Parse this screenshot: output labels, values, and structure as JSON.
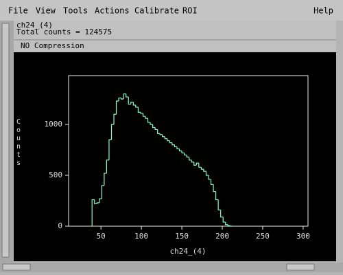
{
  "menu": [
    "File",
    "View",
    "Tools",
    "Actions",
    "Calibrate",
    "ROI"
  ],
  "help": "Help",
  "info": {
    "name": "ch24_(4)",
    "total": "Total counts = 124575",
    "compression": "NO Compression"
  },
  "chart_data": {
    "type": "histogram",
    "x_label": "ch24_(4)",
    "y_label": "Counts",
    "color": "#7fffd4",
    "bins": [
      39,
      42,
      45,
      48,
      51,
      54,
      57,
      60,
      63,
      66,
      69,
      72,
      75,
      78,
      81,
      84,
      87,
      90,
      93,
      96,
      99,
      102,
      105,
      108,
      111,
      114,
      117,
      120,
      123,
      126,
      129,
      132,
      135,
      138,
      141,
      144,
      147,
      150,
      153,
      156,
      159,
      162,
      165,
      168,
      171,
      174,
      177,
      180,
      183,
      186,
      189,
      192,
      195,
      198,
      201,
      204,
      207,
      210,
      213
    ],
    "values": [
      260,
      220,
      230,
      270,
      400,
      520,
      650,
      850,
      1000,
      1100,
      1230,
      1260,
      1250,
      1300,
      1270,
      1200,
      1220,
      1190,
      1170,
      1120,
      1110,
      1080,
      1060,
      1020,
      1000,
      970,
      950,
      910,
      900,
      880,
      860,
      840,
      820,
      800,
      780,
      760,
      740,
      720,
      700,
      680,
      650,
      630,
      600,
      620,
      580,
      560,
      540,
      500,
      460,
      410,
      340,
      260,
      160,
      90,
      40,
      15,
      5,
      0
    ],
    "xlim": [
      10,
      306
    ],
    "ylim": [
      0,
      1480
    ],
    "xticks": [
      50,
      100,
      150,
      200,
      250,
      300
    ],
    "yticks": [
      0,
      500,
      1000
    ]
  }
}
